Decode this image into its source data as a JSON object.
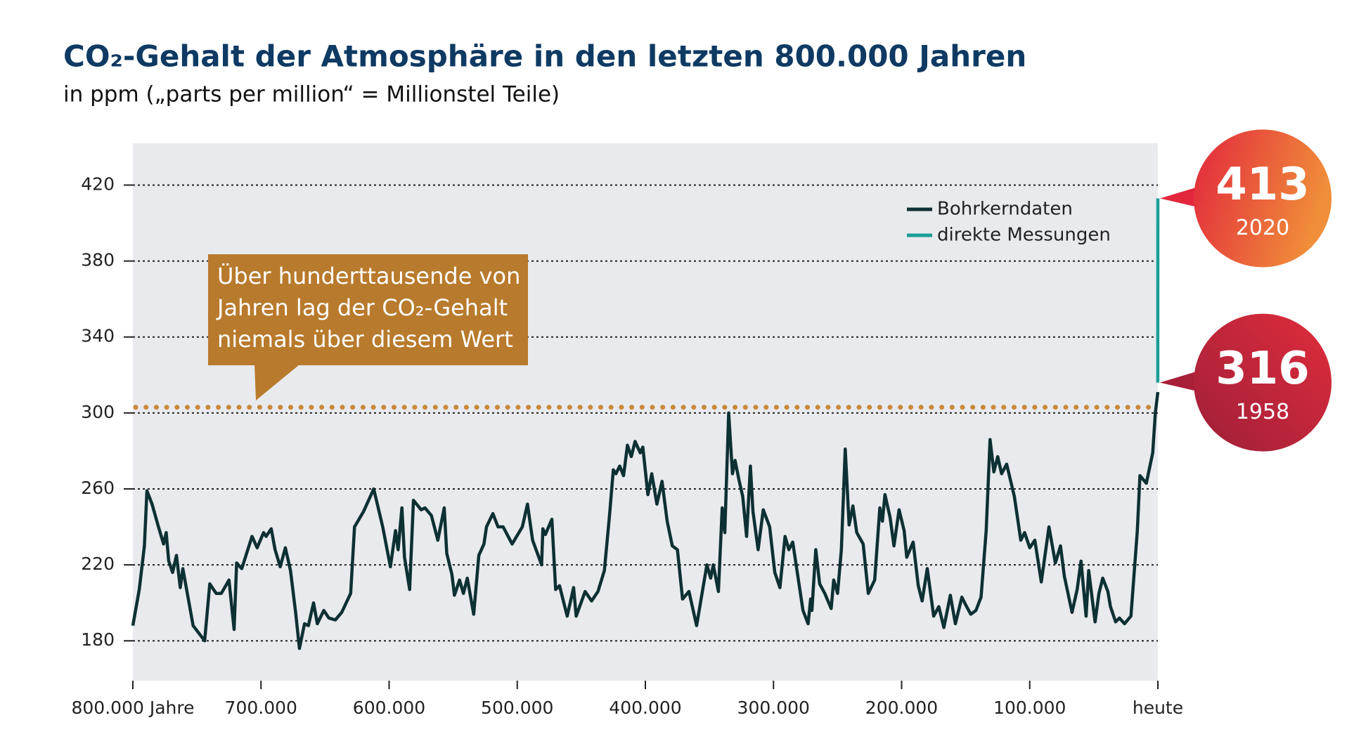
{
  "chart_data": {
    "type": "line",
    "title": "CO₂-Gehalt der Atmosphäre in den letzten 800.000 Jahren",
    "subtitle": "in ppm („parts per million“ = Millionstel Teile)",
    "xlim": [
      800000,
      0
    ],
    "xticks": [
      {
        "value": 800000,
        "label": "800.000 Jahre"
      },
      {
        "value": 700000,
        "label": "700.000"
      },
      {
        "value": 600000,
        "label": "600.000"
      },
      {
        "value": 500000,
        "label": "500.000"
      },
      {
        "value": 400000,
        "label": "400.000"
      },
      {
        "value": 300000,
        "label": "300.000"
      },
      {
        "value": 200000,
        "label": "200.000"
      },
      {
        "value": 100000,
        "label": "100.000"
      },
      {
        "value": 0,
        "label": "heute"
      }
    ],
    "ylim": [
      159,
      442
    ],
    "yticks": [
      180,
      220,
      260,
      300,
      340,
      380,
      420
    ],
    "grid": true,
    "legend": "upper right",
    "series": [
      {
        "name": "Bohrkerndaten",
        "color": "#0d3033",
        "x": [
          800000,
          795000,
          791000,
          789000,
          785000,
          780000,
          776000,
          774000,
          772000,
          769000,
          766000,
          763000,
          761000,
          753000,
          744000,
          740000,
          735000,
          731000,
          725000,
          721000,
          719000,
          715000,
          707000,
          703000,
          698000,
          696000,
          692000,
          689000,
          685000,
          681000,
          677000,
          673000,
          670000,
          666000,
          663000,
          659000,
          656000,
          651000,
          647000,
          642000,
          637000,
          630000,
          627000,
          620000,
          612000,
          605000,
          599000,
          595000,
          593000,
          590000,
          588000,
          584000,
          581000,
          575000,
          572000,
          567000,
          562000,
          557000,
          555000,
          551000,
          549000,
          545000,
          542000,
          539000,
          534000,
          530000,
          526000,
          524000,
          519000,
          515000,
          511000,
          504000,
          496000,
          492000,
          488000,
          481000,
          480000,
          478000,
          473000,
          470000,
          467000,
          461000,
          456000,
          454000,
          447000,
          442000,
          437000,
          432000,
          428000,
          425000,
          423000,
          420000,
          417000,
          414000,
          411000,
          408000,
          404000,
          402000,
          398000,
          395000,
          391000,
          387000,
          383000,
          379000,
          375000,
          371000,
          366000,
          360000,
          356000,
          352000,
          349000,
          347000,
          343000,
          340000,
          338000,
          335000,
          332000,
          330000,
          327000,
          324000,
          321000,
          318000,
          316000,
          312000,
          308000,
          303000,
          299000,
          295000,
          291000,
          288000,
          285000,
          281000,
          277000,
          273000,
          271000,
          270000,
          267000,
          264000,
          260000,
          255000,
          253000,
          250000,
          247000,
          244000,
          241000,
          238000,
          235000,
          230000,
          226000,
          221000,
          217000,
          215000,
          213000,
          209000,
          206000,
          202000,
          198000,
          196000,
          191000,
          187000,
          184000,
          180000,
          175000,
          171000,
          167000,
          162000,
          158000,
          153000,
          150000,
          146000,
          142000,
          138000,
          134000,
          131000,
          128000,
          125000,
          122000,
          118000,
          112000,
          107000,
          104000,
          100000,
          96000,
          91000,
          85000,
          80000,
          76000,
          73000,
          67000,
          63000,
          60000,
          56000,
          54000,
          49000,
          46000,
          43000,
          39000,
          37000,
          33000,
          30000,
          26000,
          21000,
          16000,
          14000,
          9000,
          4000,
          2000,
          0
        ],
        "values": [
          188,
          207,
          230,
          259,
          252,
          240,
          231,
          237,
          222,
          216,
          225,
          208,
          218,
          188,
          180,
          210,
          205,
          205,
          212,
          186,
          221,
          218,
          235,
          229,
          237,
          235,
          239,
          228,
          219,
          229,
          217,
          195,
          176,
          189,
          188,
          200,
          189,
          196,
          192,
          191,
          195,
          205,
          240,
          248,
          260,
          240,
          219,
          238,
          228,
          250,
          224,
          207,
          254,
          249,
          250,
          246,
          233,
          250,
          226,
          215,
          204,
          212,
          205,
          213,
          194,
          225,
          231,
          240,
          247,
          240,
          240,
          231,
          240,
          252,
          233,
          220,
          239,
          236,
          244,
          207,
          209,
          193,
          208,
          193,
          206,
          201,
          206,
          217,
          246,
          270,
          268,
          272,
          267,
          283,
          277,
          285,
          279,
          282,
          257,
          268,
          252,
          264,
          243,
          230,
          228,
          202,
          206,
          188,
          204,
          220,
          213,
          220,
          206,
          250,
          237,
          300,
          268,
          275,
          265,
          256,
          235,
          272,
          248,
          228,
          249,
          240,
          216,
          208,
          235,
          228,
          232,
          214,
          196,
          189,
          202,
          196,
          228,
          210,
          205,
          197,
          212,
          205,
          228,
          281,
          241,
          251,
          237,
          231,
          205,
          212,
          250,
          243,
          257,
          245,
          230,
          249,
          238,
          224,
          232,
          209,
          201,
          218,
          193,
          198,
          187,
          204,
          189,
          203,
          199,
          194,
          196,
          203,
          238,
          286,
          269,
          277,
          268,
          273,
          256,
          233,
          237,
          229,
          233,
          211,
          240,
          221,
          230,
          214,
          195,
          207,
          222,
          193,
          217,
          190,
          205,
          213,
          206,
          198,
          190,
          192,
          189,
          193,
          238,
          267,
          263,
          279,
          300,
          311
        ]
      },
      {
        "name": "direkte Messungen",
        "color": "#1a9e96",
        "x": [
          62,
          0
        ],
        "values": [
          316,
          413
        ]
      }
    ],
    "reference_line": {
      "value": 303,
      "color": "#c8893a"
    },
    "annotation": {
      "lines": [
        "Über hunderttausende von",
        "Jahren lag der CO₂-Gehalt",
        "niemals über diesem Wert"
      ],
      "color": "#b87a2c"
    },
    "callouts": [
      {
        "value": 413,
        "label": "2020"
      },
      {
        "value": 316,
        "label": "1958"
      }
    ]
  }
}
